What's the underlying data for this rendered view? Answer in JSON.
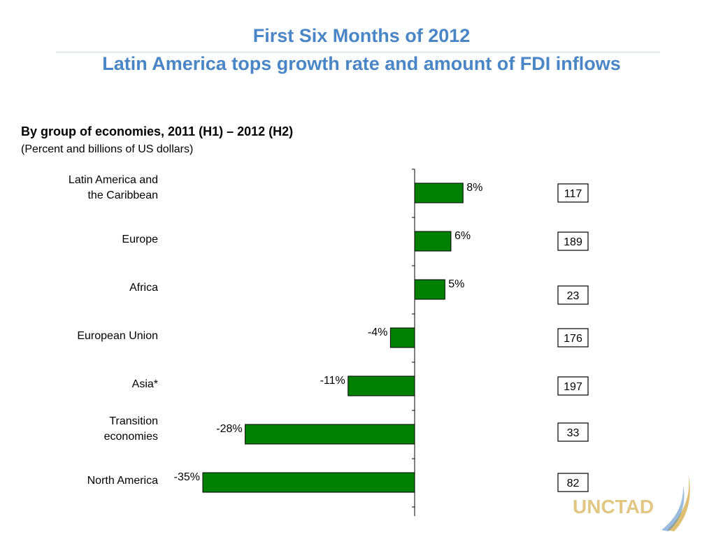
{
  "slide": {
    "title_line1": "First Six Months of 2012",
    "title_line2": "Latin America tops growth rate and amount of FDI inflows",
    "subtitle": "By group of economies, 2011 (H1) – 2012 (H2)",
    "units": "(Percent and billions of US dollars)",
    "logo_text": "UNCTAD"
  },
  "colors": {
    "title": "#4a86c5",
    "bar": "#008000",
    "bar_edge": "#000000",
    "logo": "#d9b45a"
  },
  "chart_data": {
    "type": "bar",
    "orientation": "horizontal",
    "categories": [
      [
        "Latin America and",
        "the Caribbean"
      ],
      [
        "Europe"
      ],
      [
        "Africa"
      ],
      [
        "European Union"
      ],
      [
        "Asia*"
      ],
      [
        "Transition",
        "economies"
      ],
      [
        "North America"
      ]
    ],
    "values": [
      8,
      6,
      5,
      -4,
      -11,
      -28,
      -35
    ],
    "value_labels": [
      "8%",
      "6%",
      "5%",
      "-4%",
      "-11%",
      "-28%",
      "-35%"
    ],
    "amounts": [
      "117",
      "189",
      "23",
      "176",
      "197",
      "33",
      "82"
    ],
    "xlim": [
      -35,
      8
    ]
  }
}
